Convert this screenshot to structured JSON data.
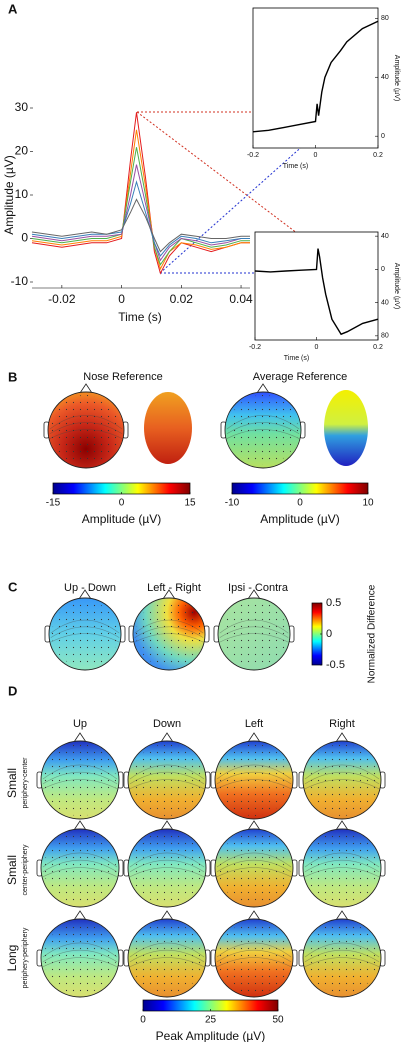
{
  "panels": [
    "A",
    "B",
    "C",
    "D"
  ],
  "topomap_titles": {
    "B": [
      "Nose Reference",
      "Average Reference"
    ],
    "C": [
      "Up - Down",
      "Left - Right",
      "Ipsi - Contra"
    ],
    "D": [
      "Up",
      "Down",
      "Left",
      "Right"
    ]
  },
  "row_labels": [
    {
      "title": "Small",
      "subtitle": "periphery-center"
    },
    {
      "title": "Small",
      "subtitle": "center-periphery"
    },
    {
      "title": "Long",
      "subtitle": "periphery-periphery"
    }
  ],
  "chart_data": [
    {
      "type": "line",
      "xlabel": "Time (s)",
      "ylabel": "Amplitude (µV)",
      "x": [
        -0.03,
        -0.02,
        -0.01,
        -0.005,
        0,
        0.003,
        0.005,
        0.008,
        0.011,
        0.013,
        0.016,
        0.02,
        0.025,
        0.03,
        0.035,
        0.04,
        0.043
      ],
      "xlim": [
        -0.03,
        0.043
      ],
      "xticks": [
        -0.02,
        0,
        0.02,
        0.04
      ],
      "ylim": [
        -10,
        30
      ],
      "yticks": [
        -10,
        0,
        10,
        20,
        30
      ],
      "series": [
        {
          "color": "#e41a1c",
          "values": [
            -1,
            -2,
            -1,
            -1,
            0,
            18,
            29,
            14,
            -3,
            -8,
            -4,
            -1,
            -2,
            -3,
            -2,
            -1,
            -1
          ]
        },
        {
          "color": "#ff7f00",
          "values": [
            -0.5,
            -1.5,
            -0.5,
            -0.5,
            0.5,
            15,
            25,
            12,
            -2,
            -7,
            -3,
            -1,
            -1.5,
            -2.5,
            -2,
            -1,
            -1
          ]
        },
        {
          "color": "#4daf4a",
          "values": [
            0,
            -1,
            0,
            0,
            1,
            13,
            21,
            10,
            -2,
            -6,
            -3,
            0,
            -1,
            -2,
            -1.5,
            -0.5,
            -0.5
          ]
        },
        {
          "color": "#984ea3",
          "values": [
            0.5,
            -0.5,
            0.5,
            0.5,
            1,
            10,
            17,
            8,
            -1,
            -5,
            -2,
            0,
            -0.5,
            -1.5,
            -1,
            0,
            0
          ]
        },
        {
          "color": "#377eb8",
          "values": [
            1,
            0,
            1,
            1,
            1.5,
            8,
            13,
            6,
            -1,
            -4,
            -1.5,
            0.5,
            0,
            -1,
            -0.5,
            0,
            0
          ]
        },
        {
          "color": "#666666",
          "values": [
            1.5,
            0.5,
            1.5,
            1,
            2,
            6,
            9,
            5,
            0,
            -3,
            -1,
            1,
            0.5,
            0,
            0,
            0.5,
            0.5
          ]
        }
      ]
    },
    {
      "type": "line",
      "xlabel": "Time (s)",
      "ylabel": "Amplitude (µV)",
      "x": [
        -0.2,
        -0.15,
        -0.1,
        -0.05,
        0,
        0.005,
        0.01,
        0.02,
        0.03,
        0.05,
        0.08,
        0.1,
        0.15,
        0.2
      ],
      "xlim": [
        -0.2,
        0.2
      ],
      "xticks": [
        -0.2,
        0,
        0.2
      ],
      "ylim": [
        -8,
        87
      ],
      "yticks": [
        0,
        40,
        80
      ],
      "series": [
        {
          "color": "#000000",
          "values": [
            3,
            4,
            6,
            8,
            10,
            22,
            14,
            30,
            40,
            50,
            58,
            64,
            73,
            78
          ]
        }
      ]
    },
    {
      "type": "line",
      "xlabel": "Time (s)",
      "ylabel": "Amplitude (µV)",
      "x": [
        -0.2,
        -0.15,
        -0.1,
        -0.05,
        0,
        0.005,
        0.01,
        0.02,
        0.03,
        0.05,
        0.08,
        0.1,
        0.15,
        0.2
      ],
      "xlim": [
        -0.2,
        0.2
      ],
      "xticks": [
        -0.2,
        0,
        0.2
      ],
      "ylim": [
        -85,
        45
      ],
      "yticks": [
        40,
        0,
        {
          "value": -40,
          "label": "40"
        },
        {
          "value": -80,
          "label": "80"
        }
      ],
      "series": [
        {
          "color": "#000000",
          "values": [
            -2,
            -3,
            -2,
            -1,
            0,
            25,
            15,
            -10,
            -30,
            -60,
            -78,
            -75,
            -65,
            -60
          ]
        }
      ]
    },
    {
      "type": "colorbar",
      "xlabel": "Amplitude (µV)",
      "xlim": [
        -15,
        15
      ],
      "xticks": [
        -15,
        0,
        15
      ]
    },
    {
      "type": "colorbar",
      "xlabel": "Amplitude (µV)",
      "xlim": [
        -10,
        10
      ],
      "xticks": [
        -10,
        0,
        10
      ]
    },
    {
      "type": "colorbar",
      "ylabel": "Normalized Difference",
      "ylim": [
        -0.5,
        0.5
      ],
      "yticks": [
        0.5,
        0,
        -0.5
      ]
    },
    {
      "type": "colorbar",
      "xlabel": "Peak Amplitude (µV)",
      "xlim": [
        0,
        50
      ],
      "xticks": [
        0,
        25,
        50
      ]
    }
  ]
}
